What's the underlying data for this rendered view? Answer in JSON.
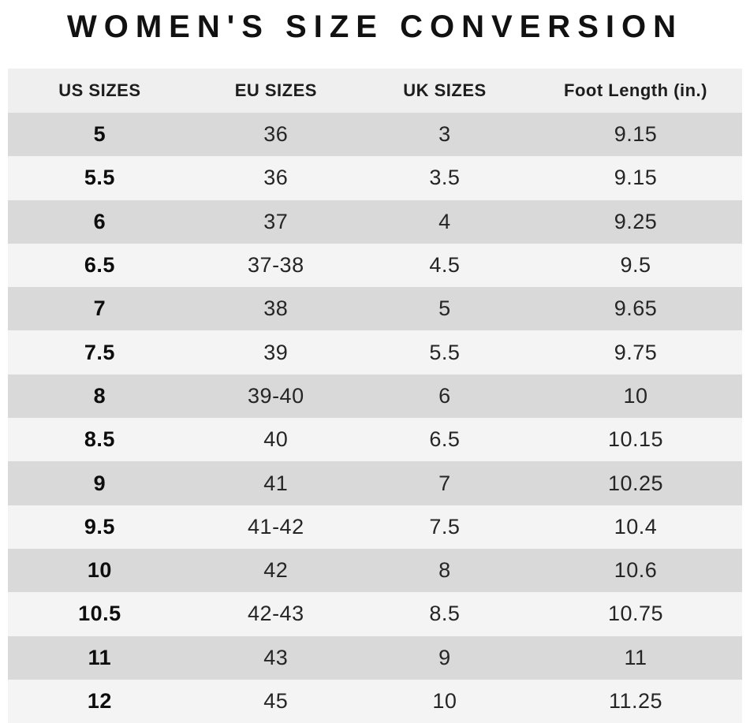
{
  "title": "WOMEN'S SIZE CONVERSION",
  "chart_data": {
    "type": "table",
    "title": "WOMEN'S SIZE CONVERSION",
    "columns": [
      "US SIZES",
      "EU SIZES",
      "UK SIZES",
      "Foot Length (in.)"
    ],
    "rows": [
      [
        "5",
        "36",
        "3",
        "9.15"
      ],
      [
        "5.5",
        "36",
        "3.5",
        "9.15"
      ],
      [
        "6",
        "37",
        "4",
        "9.25"
      ],
      [
        "6.5",
        "37-38",
        "4.5",
        "9.5"
      ],
      [
        "7",
        "38",
        "5",
        "9.65"
      ],
      [
        "7.5",
        "39",
        "5.5",
        "9.75"
      ],
      [
        "8",
        "39-40",
        "6",
        "10"
      ],
      [
        "8.5",
        "40",
        "6.5",
        "10.15"
      ],
      [
        "9",
        "41",
        "7",
        "10.25"
      ],
      [
        "9.5",
        "41-42",
        "7.5",
        "10.4"
      ],
      [
        "10",
        "42",
        "8",
        "10.6"
      ],
      [
        "10.5",
        "42-43",
        "8.5",
        "10.75"
      ],
      [
        "11",
        "43",
        "9",
        "11"
      ],
      [
        "12",
        "45",
        "10",
        "11.25"
      ]
    ],
    "layout": {
      "striped": true,
      "stripe_order": "dark-first"
    }
  },
  "colors": {
    "row_dark": "#d9d9d9",
    "row_light": "#f4f4f4",
    "header_bg": "#efefef",
    "text": "#252525",
    "title_text": "#111111",
    "background": "#ffffff"
  }
}
